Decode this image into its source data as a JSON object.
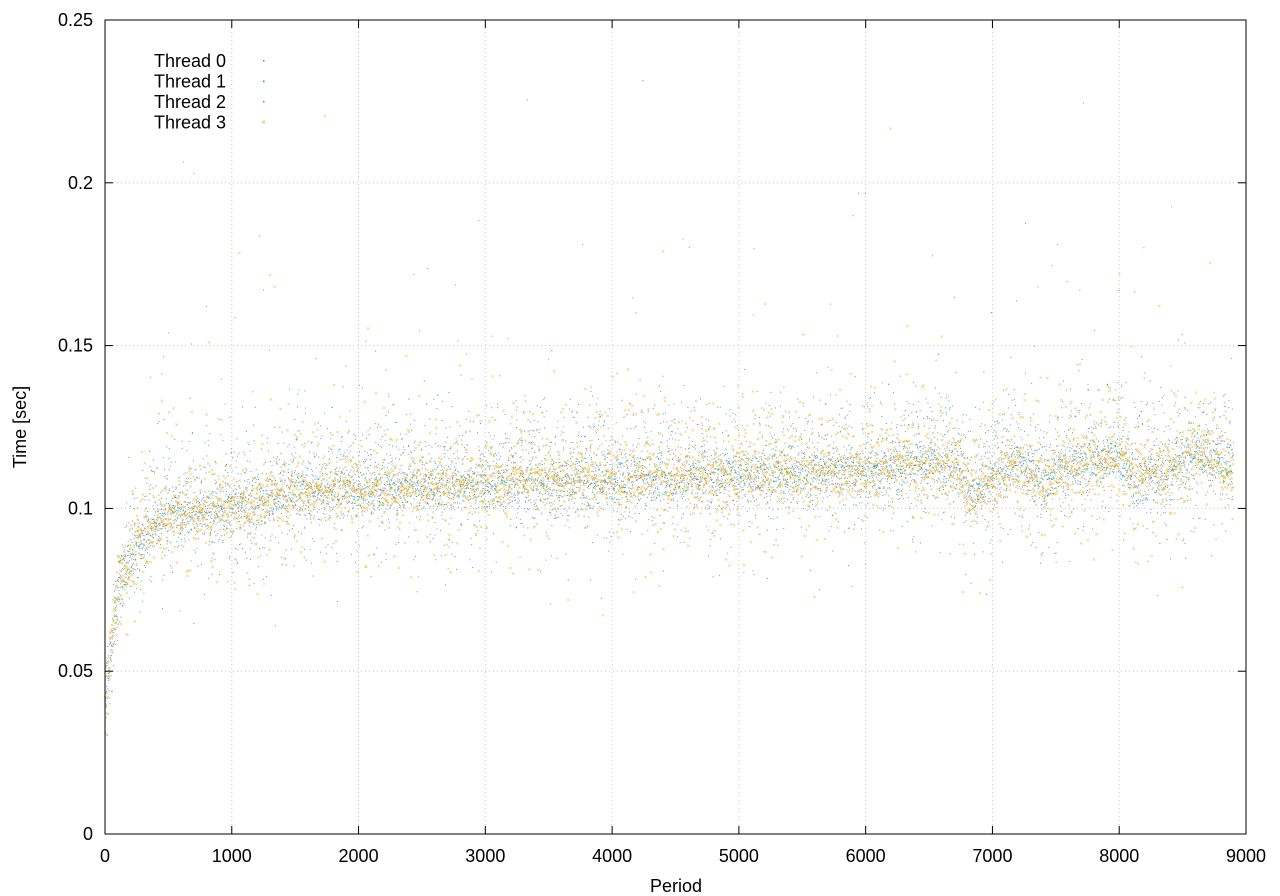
{
  "chart_data": {
    "type": "scatter",
    "title": "",
    "xlabel": "Period",
    "ylabel": "Time [sec]",
    "xlim": [
      0,
      9000
    ],
    "ylim": [
      0,
      0.25
    ],
    "x_ticks": [
      "0",
      "1000",
      "2000",
      "3000",
      "4000",
      "5000",
      "6000",
      "7000",
      "8000",
      "9000"
    ],
    "y_ticks": [
      "0",
      "0.05",
      "0.1",
      "0.15",
      "0.2",
      "0.25"
    ],
    "x_tick_values": [
      0,
      1000,
      2000,
      3000,
      4000,
      5000,
      6000,
      7000,
      8000,
      9000
    ],
    "y_tick_values": [
      0,
      0.05,
      0.1,
      0.15,
      0.2,
      0.25
    ],
    "grid": true,
    "legend_position": "top-left",
    "series": [
      {
        "name": "Thread 0",
        "color": "#9467bd",
        "marker": "dot"
      },
      {
        "name": "Thread 1",
        "color": "#2ca02c",
        "marker": "dot"
      },
      {
        "name": "Thread 2",
        "color": "#1f9fd6",
        "marker": "dot"
      },
      {
        "name": "Thread 3",
        "color": "#f0b020",
        "marker": "cross"
      }
    ],
    "trend": {
      "x": [
        0,
        100,
        200,
        300,
        400,
        500,
        700,
        1000,
        1500,
        2000,
        2500,
        3000,
        3500,
        4000,
        4500,
        5000,
        5500,
        6000,
        6500,
        6700,
        6800,
        7000,
        7200,
        7400,
        7600,
        7800,
        8000,
        8100,
        8500,
        8700,
        8900
      ],
      "y": [
        0.04,
        0.075,
        0.083,
        0.09,
        0.095,
        0.097,
        0.098,
        0.1,
        0.104,
        0.105,
        0.106,
        0.107,
        0.108,
        0.108,
        0.109,
        0.109,
        0.11,
        0.111,
        0.113,
        0.113,
        0.104,
        0.108,
        0.114,
        0.106,
        0.112,
        0.114,
        0.115,
        0.108,
        0.113,
        0.116,
        0.11
      ]
    },
    "n_points_per_series": 8900
  }
}
